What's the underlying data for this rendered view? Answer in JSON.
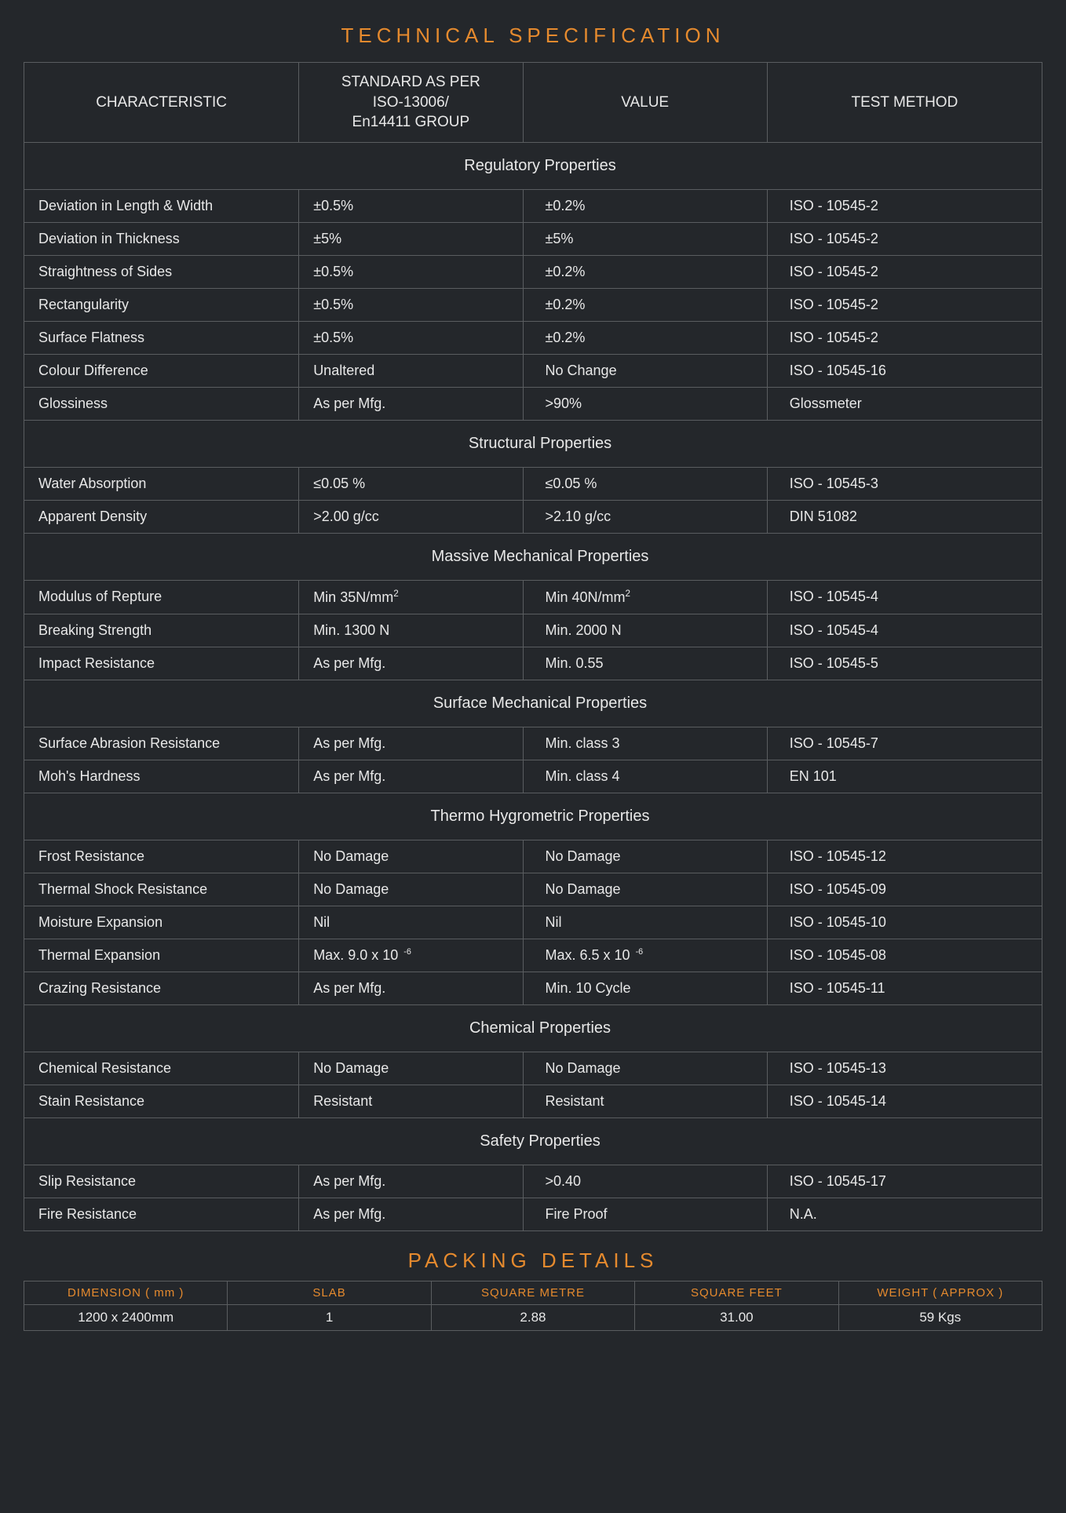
{
  "colors": {
    "background": "#24272b",
    "text": "#e8e8e8",
    "accent": "#e58a2e",
    "border": "#5a5d60"
  },
  "spec": {
    "title": "TECHNICAL SPECIFICATION",
    "headers": {
      "c1": "CHARACTERISTIC",
      "c2": "STANDARD AS PER\nISO-13006/\nEn14411 GROUP",
      "c3": "VALUE",
      "c4": "TEST METHOD"
    },
    "sections": [
      {
        "title": "Regulatory Properties",
        "rows": [
          {
            "c1": "Deviation in Length & Width",
            "c2": "±0.5%",
            "c3": "±0.2%",
            "c4": "ISO - 10545-2"
          },
          {
            "c1": "Deviation in Thickness",
            "c2": "±5%",
            "c3": "±5%",
            "c4": "ISO - 10545-2"
          },
          {
            "c1": "Straightness of Sides",
            "c2": "±0.5%",
            "c3": "±0.2%",
            "c4": "ISO - 10545-2"
          },
          {
            "c1": "Rectangularity",
            "c2": "±0.5%",
            "c3": "±0.2%",
            "c4": "ISO - 10545-2"
          },
          {
            "c1": "Surface Flatness",
            "c2": "±0.5%",
            "c3": "±0.2%",
            "c4": "ISO - 10545-2"
          },
          {
            "c1": "Colour Difference",
            "c2": "Unaltered",
            "c3": "No Change",
            "c4": "ISO - 10545-16"
          },
          {
            "c1": "Glossiness",
            "c2": "As per Mfg.",
            "c3": ">90%",
            "c4": "Glossmeter"
          }
        ]
      },
      {
        "title": "Structural Properties",
        "rows": [
          {
            "c1": "Water Absorption",
            "c2": "≤0.05 %",
            "c3": "≤0.05 %",
            "c4": "ISO - 10545-3"
          },
          {
            "c1": "Apparent Density",
            "c2": ">2.00 g/cc",
            "c3": ">2.10 g/cc",
            "c4": "DIN 51082"
          }
        ]
      },
      {
        "title": "Massive Mechanical Properties",
        "rows": [
          {
            "c1": "Modulus of Repture",
            "c2": "Min 35N/mm²",
            "c3": "Min 40N/mm²",
            "c4": "ISO - 10545-4",
            "sup": true
          },
          {
            "c1": "Breaking Strength",
            "c2": "Min. 1300 N",
            "c3": "Min. 2000 N",
            "c4": "ISO - 10545-4"
          },
          {
            "c1": "Impact Resistance",
            "c2": "As per Mfg.",
            "c3": "Min. 0.55",
            "c4": "ISO - 10545-5"
          }
        ]
      },
      {
        "title": "Surface Mechanical Properties",
        "rows": [
          {
            "c1": "Surface Abrasion Resistance",
            "c2": "As per Mfg.",
            "c3": "Min. class 3",
            "c4": "ISO - 10545-7"
          },
          {
            "c1": "Moh's Hardness",
            "c2": "As per Mfg.",
            "c3": "Min. class 4",
            "c4": "EN 101"
          }
        ]
      },
      {
        "title": "Thermo Hygrometric Properties",
        "rows": [
          {
            "c1": "Frost Resistance",
            "c2": "No Damage",
            "c3": "No Damage",
            "c4": "ISO - 10545-12"
          },
          {
            "c1": "Thermal Shock Resistance",
            "c2": "No Damage",
            "c3": "No Damage",
            "c4": "ISO - 10545-09"
          },
          {
            "c1": "Moisture Expansion",
            "c2": "Nil",
            "c3": "Nil",
            "c4": "ISO - 10545-10"
          },
          {
            "c1": "Thermal Expansion",
            "c2": "Max. 9.0 x 10⁻⁶",
            "c3": "Max. 6.5 x 10⁻⁶",
            "c4": "ISO - 10545-08",
            "exp": true
          },
          {
            "c1": "Crazing Resistance",
            "c2": "As per Mfg.",
            "c3": "Min. 10 Cycle",
            "c4": "ISO - 10545-11"
          }
        ]
      },
      {
        "title": "Chemical Properties",
        "rows": [
          {
            "c1": "Chemical Resistance",
            "c2": "No Damage",
            "c3": "No Damage",
            "c4": "ISO - 10545-13"
          },
          {
            "c1": "Stain Resistance",
            "c2": "Resistant",
            "c3": "Resistant",
            "c4": "ISO - 10545-14"
          }
        ]
      },
      {
        "title": "Safety Properties",
        "rows": [
          {
            "c1": "Slip Resistance",
            "c2": "As per Mfg.",
            "c3": ">0.40",
            "c4": "ISO - 10545-17"
          },
          {
            "c1": "Fire Resistance",
            "c2": "As per Mfg.",
            "c3": "Fire Proof",
            "c4": "N.A."
          }
        ]
      }
    ]
  },
  "packing": {
    "title": "PACKING DETAILS",
    "headers": [
      "DIMENSION ( mm )",
      "SLAB",
      "SQUARE METRE",
      "SQUARE FEET",
      "WEIGHT ( APPROX )"
    ],
    "row": [
      "1200 x 2400mm",
      "1",
      "2.88",
      "31.00",
      "59 Kgs"
    ]
  }
}
